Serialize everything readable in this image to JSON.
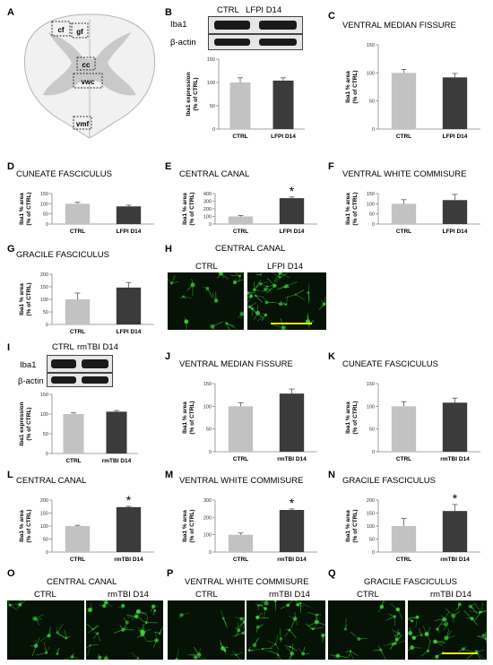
{
  "panel_letters": {
    "A": "A",
    "B": "B",
    "C": "C",
    "D": "D",
    "E": "E",
    "F": "F",
    "G": "G",
    "H": "H",
    "I": "I",
    "J": "J",
    "K": "K",
    "L": "L",
    "M": "M",
    "N": "N",
    "O": "O",
    "P": "P",
    "Q": "Q"
  },
  "diagram": {
    "regions": [
      "cf",
      "gf",
      "cc",
      "vwc",
      "vmf"
    ]
  },
  "western": {
    "b": {
      "lanes": [
        "CTRL",
        "LFPI D14"
      ],
      "rows": [
        "Iba1",
        "β-actin"
      ]
    },
    "i": {
      "lanes": [
        "CTRL",
        "rmTBI D14"
      ],
      "rows": [
        "Iba1",
        "β-actin"
      ]
    }
  },
  "colors": {
    "ctrl": "#c2c2c2",
    "treated": "#3b3b3b",
    "fluor": "#3ad43a",
    "scalebar": "#e8e800"
  },
  "chart_data": [
    {
      "id": "B",
      "type": "bar",
      "title": "",
      "categories": [
        "CTRL",
        "LFPI D14"
      ],
      "values": [
        100,
        104
      ],
      "errors": [
        10,
        6
      ],
      "ylabel": "Iba1 expression\n(% of CTRL)",
      "ylim": [
        0,
        150
      ],
      "yticks": [
        0,
        50,
        100,
        150
      ],
      "significance": []
    },
    {
      "id": "C",
      "type": "bar",
      "title": "VENTRAL MEDIAN FISSURE",
      "categories": [
        "CTRL",
        "LFPI D14"
      ],
      "values": [
        100,
        92
      ],
      "errors": [
        6,
        7
      ],
      "ylabel": "Iba1 % area\n(% of CTRL)",
      "ylim": [
        0,
        150
      ],
      "yticks": [
        0,
        50,
        100,
        150
      ],
      "significance": []
    },
    {
      "id": "D",
      "type": "bar",
      "title": "CUNEATE FASCICULUS",
      "categories": [
        "CTRL",
        "LFPI D14"
      ],
      "values": [
        100,
        87
      ],
      "errors": [
        7,
        6
      ],
      "ylabel": "Iba1 % area\n(% of CTRL)",
      "ylim": [
        0,
        150
      ],
      "yticks": [
        0,
        50,
        100,
        150
      ],
      "significance": []
    },
    {
      "id": "E",
      "type": "bar",
      "title": "CENTRAL CANAL",
      "categories": [
        "CTRL",
        "LFPI D14"
      ],
      "values": [
        100,
        340
      ],
      "errors": [
        12,
        15
      ],
      "ylabel": "Iba1 % area\n(% of CTRL)",
      "ylim": [
        0,
        400
      ],
      "yticks": [
        0,
        100,
        200,
        300,
        400
      ],
      "significance": [
        "",
        "*"
      ]
    },
    {
      "id": "F",
      "type": "bar",
      "title": "VENTRAL WHITE COMMISURE",
      "categories": [
        "CTRL",
        "LFPI D14"
      ],
      "values": [
        100,
        118
      ],
      "errors": [
        20,
        28
      ],
      "ylabel": "Iba1 % area\n(% of CTRL)",
      "ylim": [
        0,
        150
      ],
      "yticks": [
        0,
        50,
        100,
        150
      ],
      "significance": []
    },
    {
      "id": "G",
      "type": "bar",
      "title": "GRACILE FASCICULUS",
      "categories": [
        "CTRL",
        "LFPI D14"
      ],
      "values": [
        100,
        147
      ],
      "errors": [
        25,
        20
      ],
      "ylabel": "Iba1 % area\n(% of CTRL)",
      "ylim": [
        0,
        200
      ],
      "yticks": [
        0,
        50,
        100,
        150,
        200
      ],
      "significance": []
    },
    {
      "id": "I",
      "type": "bar",
      "title": "",
      "categories": [
        "CTRL",
        "rmTBI D14"
      ],
      "values": [
        100,
        106
      ],
      "errors": [
        3,
        3
      ],
      "ylabel": "Iba1 expression\n(% of CTRL)",
      "ylim": [
        0,
        150
      ],
      "yticks": [
        0,
        50,
        100,
        150
      ],
      "significance": []
    },
    {
      "id": "J",
      "type": "bar",
      "title": "VENTRAL MEDIAN FISSURE",
      "categories": [
        "CTRL",
        "rmTBI D14"
      ],
      "values": [
        100,
        128
      ],
      "errors": [
        8,
        10
      ],
      "ylabel": "Iba1 % area\n(% of CTRL)",
      "ylim": [
        0,
        150
      ],
      "yticks": [
        0,
        50,
        100,
        150
      ],
      "significance": []
    },
    {
      "id": "K",
      "type": "bar",
      "title": "CUNEATE FASCICULUS",
      "categories": [
        "CTRL",
        "rmTBI D14"
      ],
      "values": [
        100,
        108
      ],
      "errors": [
        10,
        10
      ],
      "ylabel": "Iba1 % area\n(% of CTRL)",
      "ylim": [
        0,
        150
      ],
      "yticks": [
        0,
        50,
        100,
        150
      ],
      "significance": []
    },
    {
      "id": "L",
      "type": "bar",
      "title": "CENTRAL CANAL",
      "categories": [
        "CTRL",
        "rmTBI D14"
      ],
      "values": [
        100,
        173
      ],
      "errors": [
        3,
        3
      ],
      "ylabel": "Iba1 % area\n(% of CTRL)",
      "ylim": [
        0,
        200
      ],
      "yticks": [
        0,
        50,
        100,
        150,
        200
      ],
      "significance": [
        "",
        "*"
      ]
    },
    {
      "id": "M",
      "type": "bar",
      "title": "VENTRAL WHITE COMMISURE",
      "categories": [
        "CTRL",
        "rmTBI D14"
      ],
      "values": [
        100,
        243
      ],
      "errors": [
        10,
        6
      ],
      "ylabel": "Iba1 % area\n(% of CTRL)",
      "ylim": [
        0,
        300
      ],
      "yticks": [
        0,
        100,
        200,
        300
      ],
      "significance": [
        "",
        "*"
      ]
    },
    {
      "id": "N",
      "type": "bar",
      "title": "GRACILE FASCICULUS",
      "categories": [
        "CTRL",
        "rmTBI D14"
      ],
      "values": [
        100,
        158
      ],
      "errors": [
        30,
        25
      ],
      "ylabel": "Iba1 % area\n(% of CTRL)",
      "ylim": [
        0,
        200
      ],
      "yticks": [
        0,
        50,
        100,
        150,
        200
      ],
      "significance": [
        "",
        "*"
      ]
    }
  ],
  "micrographs": {
    "h": {
      "title": "CENTRAL CANAL",
      "left": "CTRL",
      "right": "LFPI D14"
    },
    "o": {
      "title": "CENTRAL CANAL",
      "left": "CTRL",
      "right": "rmTBI D14"
    },
    "p": {
      "title": "VENTRAL WHITE COMMISURE",
      "left": "CTRL",
      "right": "rmTBI D14"
    },
    "q": {
      "title": "GRACILE FASCICULUS",
      "left": "CTRL",
      "right": "rmTBI D14"
    }
  }
}
